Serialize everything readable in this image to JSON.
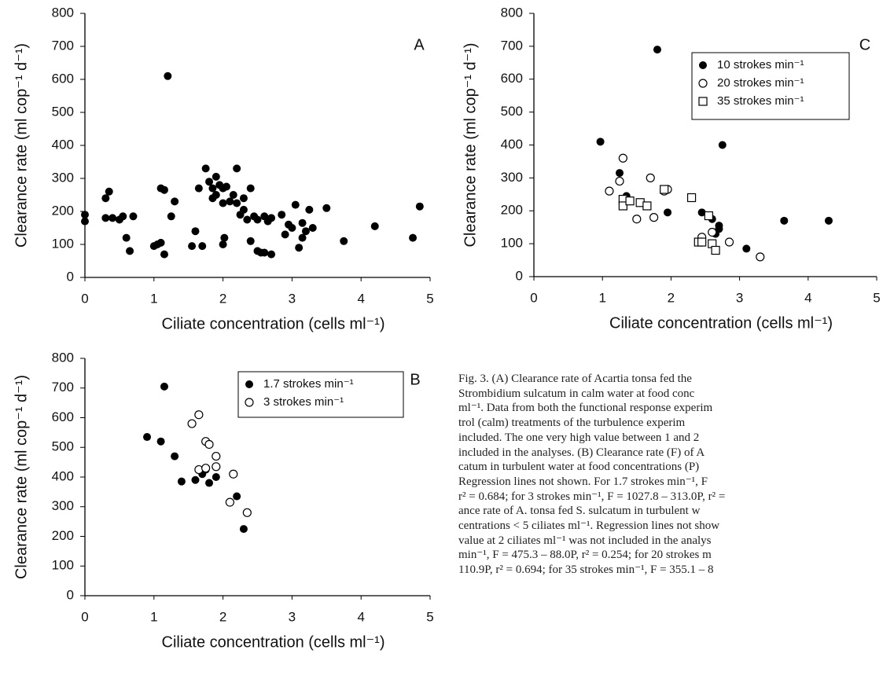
{
  "chart_data": [
    {
      "type": "scatter",
      "annotation": "A",
      "xlabel": "Ciliate concentration (cells ml⁻¹)",
      "ylabel": "Clearance rate (ml cop⁻¹ d⁻¹)",
      "xlim": [
        0,
        5
      ],
      "ylim": [
        0,
        800
      ],
      "xticks": [
        0,
        1,
        2,
        3,
        4,
        5
      ],
      "yticks": [
        0,
        100,
        200,
        300,
        400,
        500,
        600,
        700,
        800
      ],
      "series": [
        {
          "marker": "filled-circle",
          "color": "#000000",
          "x": [
            0,
            0,
            0.3,
            0.3,
            0.35,
            0.4,
            0.5,
            0.55,
            0.6,
            0.65,
            0.7,
            1.0,
            1.05,
            1.1,
            1.1,
            1.15,
            1.15,
            1.2,
            1.25,
            1.3,
            1.55,
            1.6,
            1.65,
            1.7,
            1.75,
            1.8,
            1.85,
            1.85,
            1.9,
            1.9,
            1.95,
            2.0,
            2.0,
            2.0,
            2.02,
            2.05,
            2.1,
            2.15,
            2.2,
            2.2,
            2.25,
            2.3,
            2.3,
            2.35,
            2.4,
            2.4,
            2.45,
            2.5,
            2.5,
            2.55,
            2.6,
            2.6,
            2.65,
            2.7,
            2.7,
            2.85,
            2.9,
            2.95,
            3.0,
            3.05,
            3.1,
            3.15,
            3.15,
            3.2,
            3.25,
            3.3,
            3.5,
            3.75,
            4.2,
            4.75,
            4.85
          ],
          "values": [
            190,
            170,
            240,
            180,
            260,
            180,
            175,
            185,
            120,
            80,
            185,
            95,
            100,
            105,
            270,
            265,
            70,
            610,
            185,
            230,
            95,
            140,
            270,
            95,
            330,
            290,
            240,
            270,
            305,
            250,
            280,
            225,
            270,
            100,
            120,
            275,
            230,
            250,
            225,
            330,
            190,
            240,
            205,
            175,
            270,
            110,
            185,
            80,
            175,
            75,
            185,
            75,
            170,
            70,
            180,
            190,
            130,
            160,
            150,
            220,
            90,
            165,
            120,
            140,
            205,
            150,
            210,
            110,
            155,
            120,
            215
          ]
        }
      ]
    },
    {
      "type": "scatter",
      "annotation": "C",
      "xlabel": "Ciliate concentration (cells ml⁻¹)",
      "ylabel": "Clearance rate (ml cop⁻¹ d⁻¹)",
      "xlim": [
        0,
        5
      ],
      "ylim": [
        0,
        800
      ],
      "xticks": [
        0,
        1,
        2,
        3,
        4,
        5
      ],
      "yticks": [
        0,
        100,
        200,
        300,
        400,
        500,
        600,
        700,
        800
      ],
      "series": [
        {
          "name": "10 strokes min⁻¹",
          "marker": "filled-circle",
          "color": "#000000",
          "x": [
            0.97,
            1.25,
            1.35,
            1.8,
            1.95,
            2.45,
            2.6,
            2.65,
            2.7,
            2.7,
            2.75,
            3.1,
            3.65,
            4.3
          ],
          "values": [
            410,
            315,
            245,
            690,
            195,
            195,
            175,
            130,
            155,
            145,
            400,
            85,
            170,
            170
          ]
        },
        {
          "name": "20 strokes min⁻¹",
          "marker": "open-circle",
          "color": "#000000",
          "x": [
            1.1,
            1.25,
            1.3,
            1.5,
            1.7,
            1.75,
            1.9,
            1.95,
            2.45,
            2.45,
            2.6,
            2.85,
            3.3
          ],
          "values": [
            260,
            290,
            360,
            175,
            300,
            180,
            260,
            265,
            120,
            105,
            135,
            105,
            60
          ]
        },
        {
          "name": "35 strokes min⁻¹",
          "marker": "open-square",
          "color": "#000000",
          "x": [
            1.3,
            1.3,
            1.4,
            1.55,
            1.65,
            1.9,
            2.3,
            2.4,
            2.45,
            2.55,
            2.6,
            2.65
          ],
          "values": [
            235,
            215,
            230,
            225,
            215,
            265,
            240,
            105,
            105,
            185,
            100,
            80
          ]
        }
      ]
    },
    {
      "type": "scatter",
      "annotation": "B",
      "xlabel": "Ciliate concentration (cells ml⁻¹)",
      "ylabel": "Clearance rate (ml cop⁻¹ d⁻¹)",
      "xlim": [
        0,
        5
      ],
      "ylim": [
        0,
        800
      ],
      "xticks": [
        0,
        1,
        2,
        3,
        4,
        5
      ],
      "yticks": [
        0,
        100,
        200,
        300,
        400,
        500,
        600,
        700,
        800
      ],
      "series": [
        {
          "name": "1.7 strokes min⁻¹",
          "marker": "filled-circle",
          "color": "#000000",
          "x": [
            0.9,
            1.1,
            1.15,
            1.3,
            1.4,
            1.6,
            1.7,
            1.75,
            1.8,
            1.9,
            2.2,
            2.3
          ],
          "values": [
            535,
            520,
            705,
            470,
            385,
            390,
            410,
            425,
            380,
            400,
            335,
            225
          ]
        },
        {
          "name": "3 strokes min⁻¹",
          "marker": "open-circle",
          "color": "#000000",
          "x": [
            1.55,
            1.65,
            1.75,
            1.8,
            1.9,
            1.65,
            1.75,
            1.9,
            2.1,
            2.15,
            2.35
          ],
          "values": [
            580,
            610,
            520,
            510,
            470,
            425,
            430,
            435,
            315,
            410,
            280
          ]
        }
      ]
    }
  ],
  "caption": [
    "Fig. 3. (A) Clearance rate of Acartia tonsa fed the",
    "Strombidium sulcatum in calm water at food conc",
    "ml⁻¹. Data from both the functional response experim",
    "trol (calm) treatments of the turbulence experim",
    "included. The one very high value between 1 and 2",
    "included in the analyses. (B) Clearance rate (F) of A",
    "catum in turbulent water at food concentrations (P)",
    "Regression lines not shown. For 1.7 strokes min⁻¹, F",
    "r² = 0.684; for 3 strokes min⁻¹, F = 1027.8 – 313.0P, r² =",
    "ance rate of A. tonsa fed S. sulcatum in turbulent w",
    "centrations < 5 ciliates ml⁻¹. Regression lines not show",
    "value at 2 ciliates ml⁻¹ was not included in the analys",
    "min⁻¹, F = 475.3 – 88.0P, r² = 0.254; for 20 strokes m",
    "110.9P, r² = 0.694; for 35 strokes min⁻¹, F = 355.1 – 8"
  ]
}
